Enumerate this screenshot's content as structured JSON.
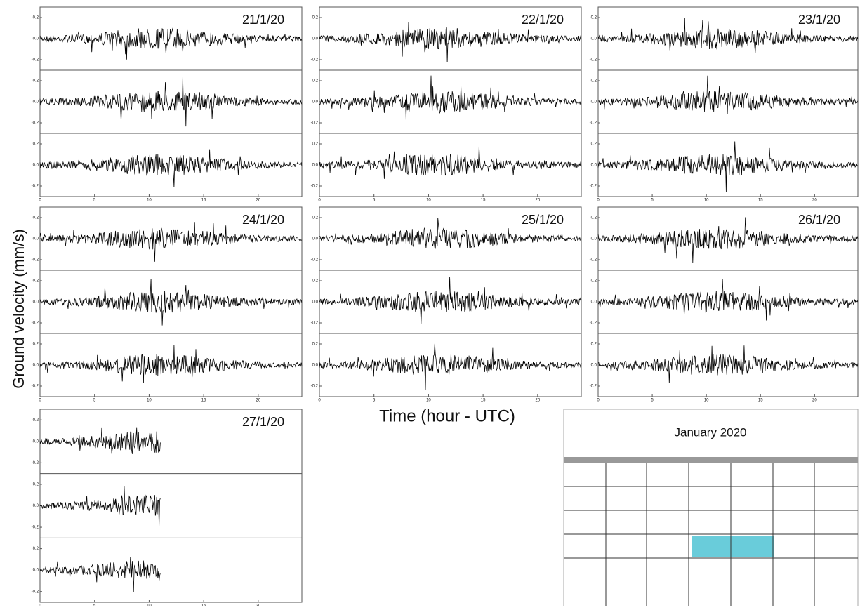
{
  "y_axis_label": "Ground velocity (mm/s)",
  "x_axis_label": "Time (hour - UTC)",
  "xlim": [
    0,
    24
  ],
  "xticks": [
    0,
    5,
    10,
    15,
    20
  ],
  "ylim": [
    -0.3,
    0.3
  ],
  "yticks": [
    -0.2,
    {
      "value": 0,
      "label": "0.0"
    },
    0.2
  ],
  "panels": [
    {
      "date": "21/1/20",
      "record_end_hour": 24
    },
    {
      "date": "22/1/20",
      "record_end_hour": 24
    },
    {
      "date": "23/1/20",
      "record_end_hour": 24
    },
    {
      "date": "24/1/20",
      "record_end_hour": 24
    },
    {
      "date": "25/1/20",
      "record_end_hour": 24
    },
    {
      "date": "26/1/20",
      "record_end_hour": 24
    },
    {
      "date": "27/1/20",
      "record_end_hour": 11
    }
  ],
  "calendar": {
    "title": "January 2020"
  }
}
